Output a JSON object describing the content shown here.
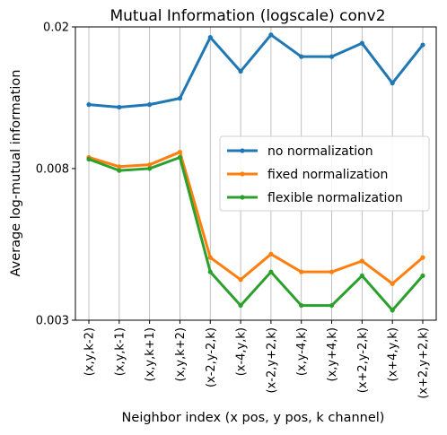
{
  "chart_data": {
    "type": "line",
    "title": "Mutual Information (logscale) conv2",
    "xlabel": "Neighbor index (x pos, y pos, k channel)",
    "ylabel": "Average log-mutual information",
    "yscale": "log",
    "ylim": [
      0.003,
      0.02
    ],
    "yticks": [
      0.003,
      0.008,
      0.02
    ],
    "ytick_labels": [
      "0.003",
      "0.008",
      "0.02"
    ],
    "grid": "x",
    "legend": "center-right",
    "categories": [
      "(x,y,k-2)",
      "(x,y,k-1)",
      "(x,y,k+1)",
      "(x,y,k+2)",
      "(x-2,y-2,k)",
      "(x-4,y,k)",
      "(x-2,y+2,k)",
      "(x,y-4,k)",
      "(x,y+4,k)",
      "(x+2,y-2,k)",
      "(x+4,y,k)",
      "(x+2,y+2,k)"
    ],
    "series": [
      {
        "name": "no normalization",
        "color": "#1f77b4",
        "values": [
          0.0121,
          0.0119,
          0.0121,
          0.0126,
          0.0187,
          0.015,
          0.019,
          0.0165,
          0.0165,
          0.018,
          0.0139,
          0.0178
        ]
      },
      {
        "name": "fixed normalization",
        "color": "#ff7f0e",
        "values": [
          0.0086,
          0.0081,
          0.0082,
          0.0089,
          0.0045,
          0.0039,
          0.0046,
          0.0041,
          0.0041,
          0.0044,
          0.0038,
          0.0045
        ]
      },
      {
        "name": "flexible normalization",
        "color": "#2ca02c",
        "values": [
          0.0085,
          0.0079,
          0.008,
          0.0086,
          0.0041,
          0.0033,
          0.0041,
          0.0033,
          0.0033,
          0.004,
          0.0032,
          0.004
        ]
      }
    ]
  }
}
